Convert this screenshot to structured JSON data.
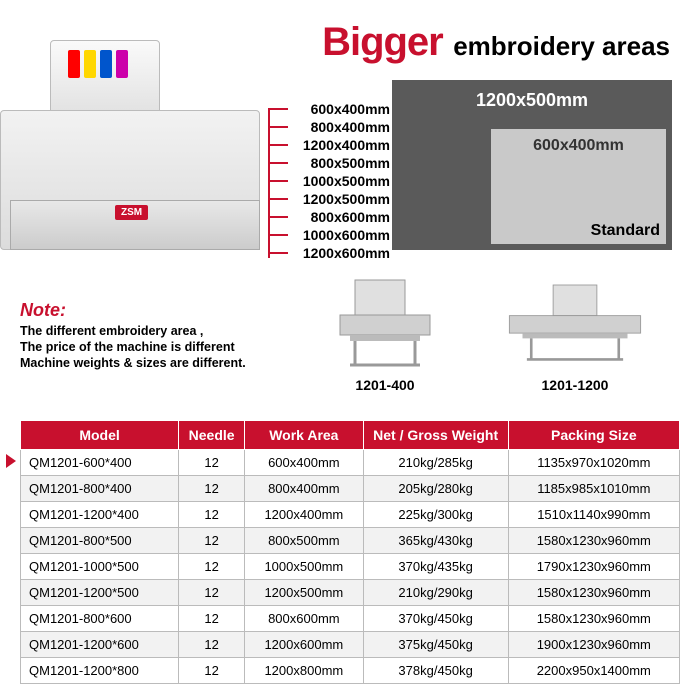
{
  "headline": {
    "big": "Bigger",
    "rest": "embroidery areas"
  },
  "brand": "ZSM",
  "size_list": [
    "600x400mm",
    "800x400mm",
    "1200x400mm",
    "800x500mm",
    "1000x500mm",
    "1200x500mm",
    "800x600mm",
    "1000x600mm",
    "1200x600mm"
  ],
  "compare": {
    "outer_label": "1200x500mm",
    "inner_label": "600x400mm",
    "standard": "Standard",
    "outer_color": "#5a5a5a",
    "inner_color": "#c9c9c9"
  },
  "note": {
    "title": "Note:",
    "line1": "The different embroidery area ,",
    "line2": "The price of the machine is different",
    "line3": "Machine weights & sizes are different."
  },
  "mini_captions": {
    "m1": "1201-400",
    "m2": "1201-1200"
  },
  "table": {
    "headers": [
      "Model",
      "Needle",
      "Work Area",
      "Net / Gross Weight",
      "Packing Size"
    ],
    "rows": [
      [
        "QM1201-600*400",
        "12",
        "600x400mm",
        "210kg/285kg",
        "1135x970x1020mm"
      ],
      [
        "QM1201-800*400",
        "12",
        "800x400mm",
        "205kg/280kg",
        "1185x985x1010mm"
      ],
      [
        "QM1201-1200*400",
        "12",
        "1200x400mm",
        "225kg/300kg",
        "1510x1140x990mm"
      ],
      [
        "QM1201-800*500",
        "12",
        "800x500mm",
        "365kg/430kg",
        "1580x1230x960mm"
      ],
      [
        "QM1201-1000*500",
        "12",
        "1000x500mm",
        "370kg/435kg",
        "1790x1230x960mm"
      ],
      [
        "QM1201-1200*500",
        "12",
        "1200x500mm",
        "210kg/290kg",
        "1580x1230x960mm"
      ],
      [
        "QM1201-800*600",
        "12",
        "800x600mm",
        "370kg/450kg",
        "1580x1230x960mm"
      ],
      [
        "QM1201-1200*600",
        "12",
        "1200x600mm",
        "375kg/450kg",
        "1900x1230x960mm"
      ],
      [
        "QM1201-1200*800",
        "12",
        "1200x800mm",
        "378kg/450kg",
        "2200x950x1400mm"
      ]
    ],
    "col_widths": [
      "24%",
      "10%",
      "18%",
      "22%",
      "26%"
    ],
    "header_bg": "#c8102e",
    "row_alt_bg": "#f2f2f2"
  },
  "colors": {
    "accent": "#c8102e"
  }
}
